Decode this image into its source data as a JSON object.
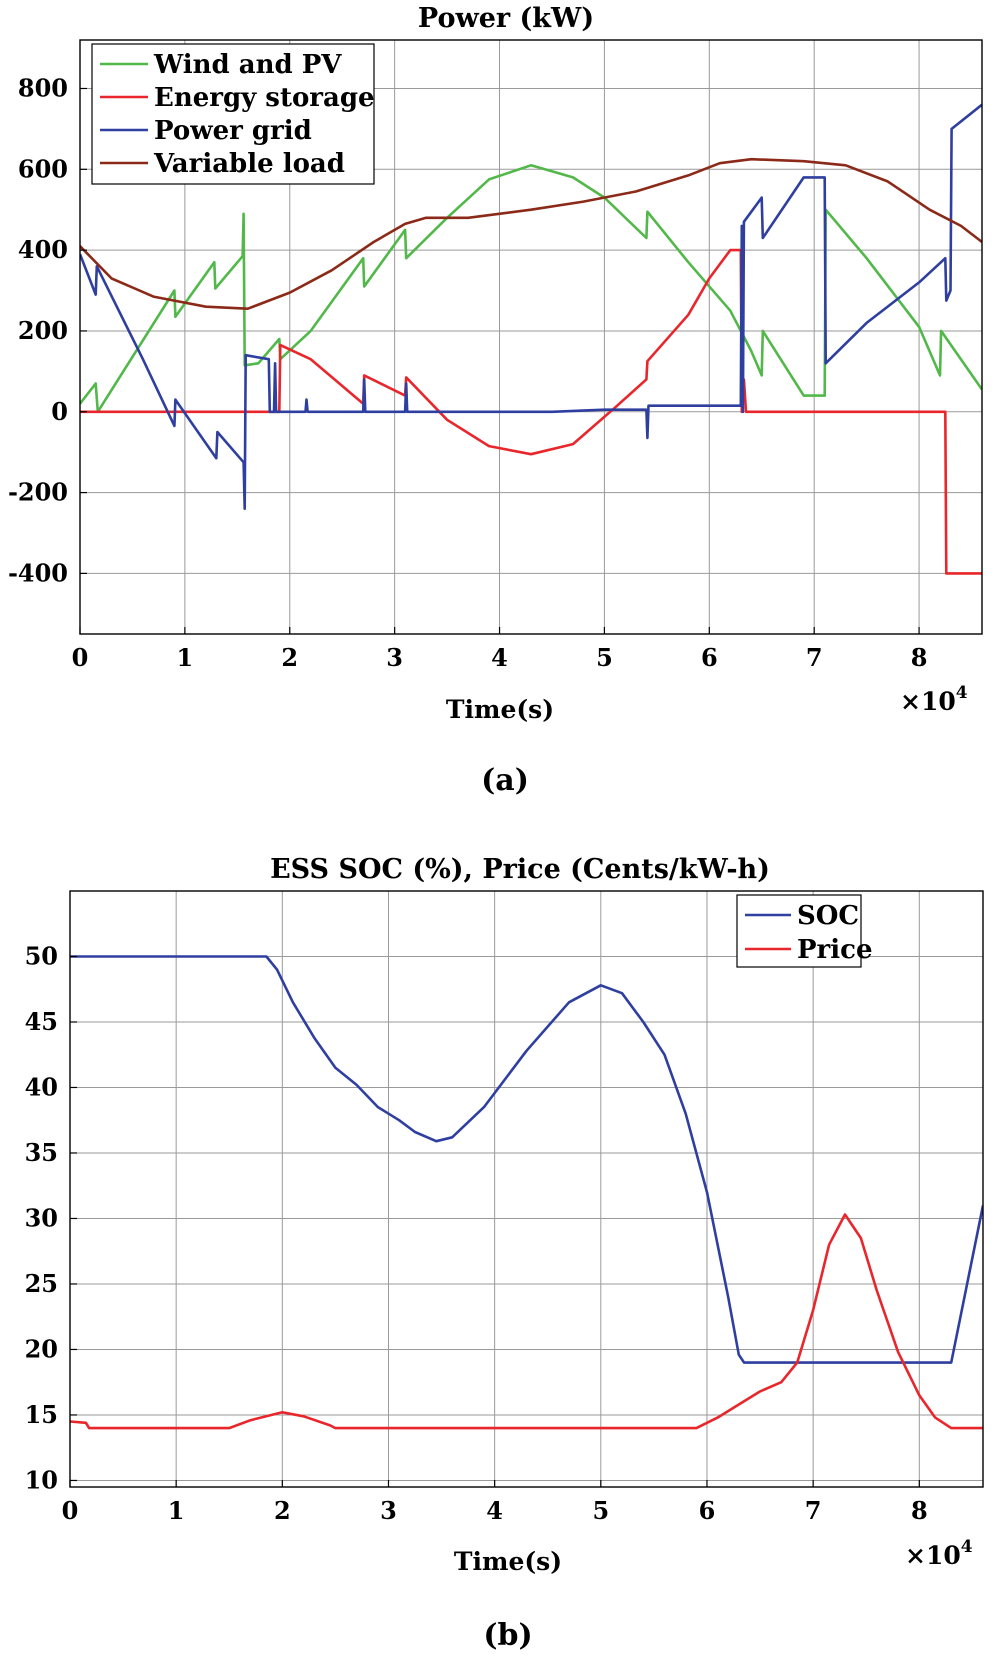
{
  "chart_data": [
    {
      "id": "a",
      "type": "line",
      "title": "Power  (kW)",
      "xlabel": "Time(s)",
      "ylabel": "",
      "caption": "(a)",
      "x_multiplier": "×10",
      "x_multiplier_exp": "4",
      "xlim": [
        0,
        8.6
      ],
      "ylim": [
        -550,
        920
      ],
      "xticks": [
        0,
        1,
        2,
        3,
        4,
        5,
        6,
        7,
        8
      ],
      "yticks": [
        -400,
        -200,
        0,
        200,
        400,
        600,
        800
      ],
      "xtick_labels": [
        "0",
        "1",
        "2",
        "3",
        "4",
        "5",
        "6",
        "7",
        "8"
      ],
      "ytick_labels": [
        "-400",
        "-200",
        "0",
        "200",
        "400",
        "600",
        "800"
      ],
      "legend_position": "top-left",
      "series": [
        {
          "name": "Wind and PV",
          "color": "#52b84a",
          "points": [
            [
              0,
              20
            ],
            [
              0.15,
              70
            ],
            [
              0.17,
              0
            ],
            [
              0.9,
              300
            ],
            [
              0.91,
              235
            ],
            [
              1.28,
              370
            ],
            [
              1.29,
              305
            ],
            [
              1.55,
              385
            ],
            [
              1.56,
              490
            ],
            [
              1.57,
              115
            ],
            [
              1.7,
              120
            ],
            [
              1.9,
              180
            ],
            [
              1.91,
              130
            ],
            [
              2.2,
              200
            ],
            [
              2.7,
              380
            ],
            [
              2.71,
              310
            ],
            [
              3.1,
              450
            ],
            [
              3.11,
              380
            ],
            [
              3.5,
              480
            ],
            [
              3.9,
              575
            ],
            [
              4.3,
              610
            ],
            [
              4.7,
              580
            ],
            [
              5.0,
              530
            ],
            [
              5.4,
              430
            ],
            [
              5.41,
              495
            ],
            [
              5.8,
              370
            ],
            [
              6.2,
              250
            ],
            [
              6.4,
              150
            ],
            [
              6.5,
              90
            ],
            [
              6.51,
              200
            ],
            [
              6.9,
              40
            ],
            [
              7.1,
              40
            ],
            [
              7.11,
              500
            ],
            [
              7.5,
              380
            ],
            [
              8.0,
              210
            ],
            [
              8.2,
              90
            ],
            [
              8.21,
              200
            ],
            [
              8.6,
              55
            ]
          ]
        },
        {
          "name": "Energy storage",
          "color": "#e8262b",
          "points": [
            [
              0,
              0
            ],
            [
              1.9,
              0
            ],
            [
              1.91,
              165
            ],
            [
              2.2,
              130
            ],
            [
              2.7,
              20
            ],
            [
              2.71,
              90
            ],
            [
              3.1,
              40
            ],
            [
              3.11,
              85
            ],
            [
              3.5,
              -20
            ],
            [
              3.9,
              -85
            ],
            [
              4.3,
              -105
            ],
            [
              4.7,
              -80
            ],
            [
              5.1,
              10
            ],
            [
              5.4,
              80
            ],
            [
              5.41,
              125
            ],
            [
              5.8,
              240
            ],
            [
              6.0,
              330
            ],
            [
              6.2,
              400
            ],
            [
              6.3,
              400
            ],
            [
              6.31,
              0
            ],
            [
              6.33,
              80
            ],
            [
              6.35,
              0
            ],
            [
              8.25,
              0
            ],
            [
              8.26,
              -400
            ],
            [
              8.6,
              -400
            ]
          ]
        },
        {
          "name": "Power grid",
          "color": "#2f3fa0",
          "points": [
            [
              0,
              390
            ],
            [
              0.15,
              290
            ],
            [
              0.16,
              360
            ],
            [
              0.6,
              130
            ],
            [
              0.9,
              -35
            ],
            [
              0.91,
              30
            ],
            [
              1.3,
              -115
            ],
            [
              1.31,
              -50
            ],
            [
              1.56,
              -125
            ],
            [
              1.57,
              -240
            ],
            [
              1.58,
              140
            ],
            [
              1.8,
              130
            ],
            [
              1.81,
              0
            ],
            [
              1.85,
              0
            ],
            [
              1.86,
              120
            ],
            [
              1.87,
              0
            ],
            [
              2.15,
              0
            ],
            [
              2.16,
              30
            ],
            [
              2.17,
              0
            ],
            [
              2.7,
              0
            ],
            [
              2.71,
              80
            ],
            [
              2.72,
              0
            ],
            [
              3.1,
              0
            ],
            [
              3.11,
              70
            ],
            [
              3.12,
              0
            ],
            [
              3.5,
              0
            ],
            [
              4.5,
              0
            ],
            [
              5.0,
              5
            ],
            [
              5.4,
              5
            ],
            [
              5.41,
              -65
            ],
            [
              5.42,
              15
            ],
            [
              6.2,
              15
            ],
            [
              6.3,
              15
            ],
            [
              6.31,
              460
            ],
            [
              6.32,
              0
            ],
            [
              6.33,
              470
            ],
            [
              6.5,
              530
            ],
            [
              6.51,
              430
            ],
            [
              6.9,
              580
            ],
            [
              7.1,
              580
            ],
            [
              7.11,
              120
            ],
            [
              7.5,
              220
            ],
            [
              8.0,
              320
            ],
            [
              8.25,
              380
            ],
            [
              8.26,
              275
            ],
            [
              8.3,
              300
            ],
            [
              8.31,
              700
            ],
            [
              8.6,
              760
            ]
          ]
        },
        {
          "name": "Variable load",
          "color": "#8b2a18",
          "points": [
            [
              0,
              410
            ],
            [
              0.3,
              330
            ],
            [
              0.7,
              285
            ],
            [
              1.2,
              260
            ],
            [
              1.6,
              255
            ],
            [
              2.0,
              295
            ],
            [
              2.4,
              350
            ],
            [
              2.8,
              420
            ],
            [
              3.1,
              465
            ],
            [
              3.3,
              480
            ],
            [
              3.7,
              480
            ],
            [
              4.3,
              500
            ],
            [
              4.8,
              520
            ],
            [
              5.3,
              545
            ],
            [
              5.8,
              585
            ],
            [
              6.1,
              615
            ],
            [
              6.4,
              625
            ],
            [
              6.9,
              620
            ],
            [
              7.3,
              610
            ],
            [
              7.7,
              570
            ],
            [
              8.1,
              500
            ],
            [
              8.4,
              460
            ],
            [
              8.6,
              420
            ]
          ]
        }
      ]
    },
    {
      "id": "b",
      "type": "line",
      "title": "ESS SOC (%), Price (Cents/kW-h)",
      "xlabel": "Time(s)",
      "ylabel": "",
      "caption": "(b)",
      "x_multiplier": "×10",
      "x_multiplier_exp": "4",
      "xlim": [
        0,
        8.6
      ],
      "ylim": [
        9.5,
        55
      ],
      "xticks": [
        0,
        1,
        2,
        3,
        4,
        5,
        6,
        7,
        8
      ],
      "yticks": [
        10,
        15,
        20,
        25,
        30,
        35,
        40,
        45,
        50
      ],
      "xtick_labels": [
        "0",
        "1",
        "2",
        "3",
        "4",
        "5",
        "6",
        "7",
        "8"
      ],
      "ytick_labels": [
        "10",
        "15",
        "20",
        "25",
        "30",
        "35",
        "40",
        "45",
        "50"
      ],
      "legend_position": "top-right",
      "series": [
        {
          "name": "SOC",
          "color": "#2f3fa0",
          "points": [
            [
              0,
              50
            ],
            [
              1.85,
              50
            ],
            [
              1.95,
              49
            ],
            [
              2.1,
              46.5
            ],
            [
              2.3,
              43.8
            ],
            [
              2.5,
              41.5
            ],
            [
              2.7,
              40.2
            ],
            [
              2.9,
              38.5
            ],
            [
              3.1,
              37.5
            ],
            [
              3.25,
              36.6
            ],
            [
              3.45,
              35.9
            ],
            [
              3.6,
              36.2
            ],
            [
              3.9,
              38.5
            ],
            [
              4.3,
              42.8
            ],
            [
              4.7,
              46.5
            ],
            [
              5.0,
              47.8
            ],
            [
              5.2,
              47.2
            ],
            [
              5.4,
              45
            ],
            [
              5.6,
              42.5
            ],
            [
              5.8,
              38
            ],
            [
              6.0,
              32
            ],
            [
              6.2,
              24
            ],
            [
              6.3,
              19.6
            ],
            [
              6.35,
              19
            ],
            [
              7.0,
              19
            ],
            [
              8.3,
              19
            ],
            [
              8.6,
              31
            ]
          ]
        },
        {
          "name": "Price",
          "color": "#e8262b",
          "points": [
            [
              0,
              14.5
            ],
            [
              0.15,
              14.4
            ],
            [
              0.18,
              14
            ],
            [
              1.5,
              14
            ],
            [
              1.7,
              14.6
            ],
            [
              2.0,
              15.2
            ],
            [
              2.2,
              14.9
            ],
            [
              2.45,
              14.2
            ],
            [
              2.5,
              14
            ],
            [
              5.9,
              14
            ],
            [
              6.1,
              14.8
            ],
            [
              6.3,
              15.8
            ],
            [
              6.5,
              16.8
            ],
            [
              6.7,
              17.5
            ],
            [
              6.85,
              19
            ],
            [
              7.0,
              23
            ],
            [
              7.15,
              28
            ],
            [
              7.3,
              30.3
            ],
            [
              7.45,
              28.5
            ],
            [
              7.6,
              24.5
            ],
            [
              7.8,
              19.8
            ],
            [
              8.0,
              16.5
            ],
            [
              8.15,
              14.8
            ],
            [
              8.3,
              14
            ],
            [
              8.6,
              14
            ]
          ]
        }
      ]
    }
  ]
}
